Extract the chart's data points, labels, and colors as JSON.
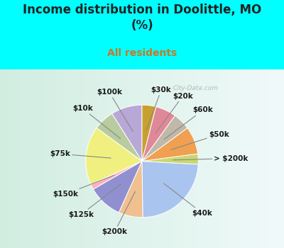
{
  "title": "Income distribution in Doolittle, MO\n(%)",
  "subtitle": "All residents",
  "bg_color": "#00FFFF",
  "chart_bg_left": "#d4eed4",
  "chart_bg_right": "#e8f8f8",
  "labels": [
    "$100k",
    "$10k",
    "$75k",
    "$150k",
    "$125k",
    "$200k",
    "$40k",
    "> $200k",
    "$50k",
    "$60k",
    "$20k",
    "$30k"
  ],
  "values": [
    9,
    6,
    17,
    1.5,
    10,
    7,
    24,
    3,
    8,
    5,
    6,
    4
  ],
  "colors": [
    "#b8a8d8",
    "#b8cca0",
    "#f0f080",
    "#ffb0c0",
    "#9090d0",
    "#f0c090",
    "#aac4f0",
    "#c8d870",
    "#f0a050",
    "#c0b8a8",
    "#e08898",
    "#c8a030"
  ],
  "startangle": 90,
  "label_fontsize": 7.5,
  "title_fontsize": 12,
  "subtitle_fontsize": 10,
  "subtitle_color": "#cc7722",
  "title_color": "#222222",
  "watermark": "City-Data.com"
}
